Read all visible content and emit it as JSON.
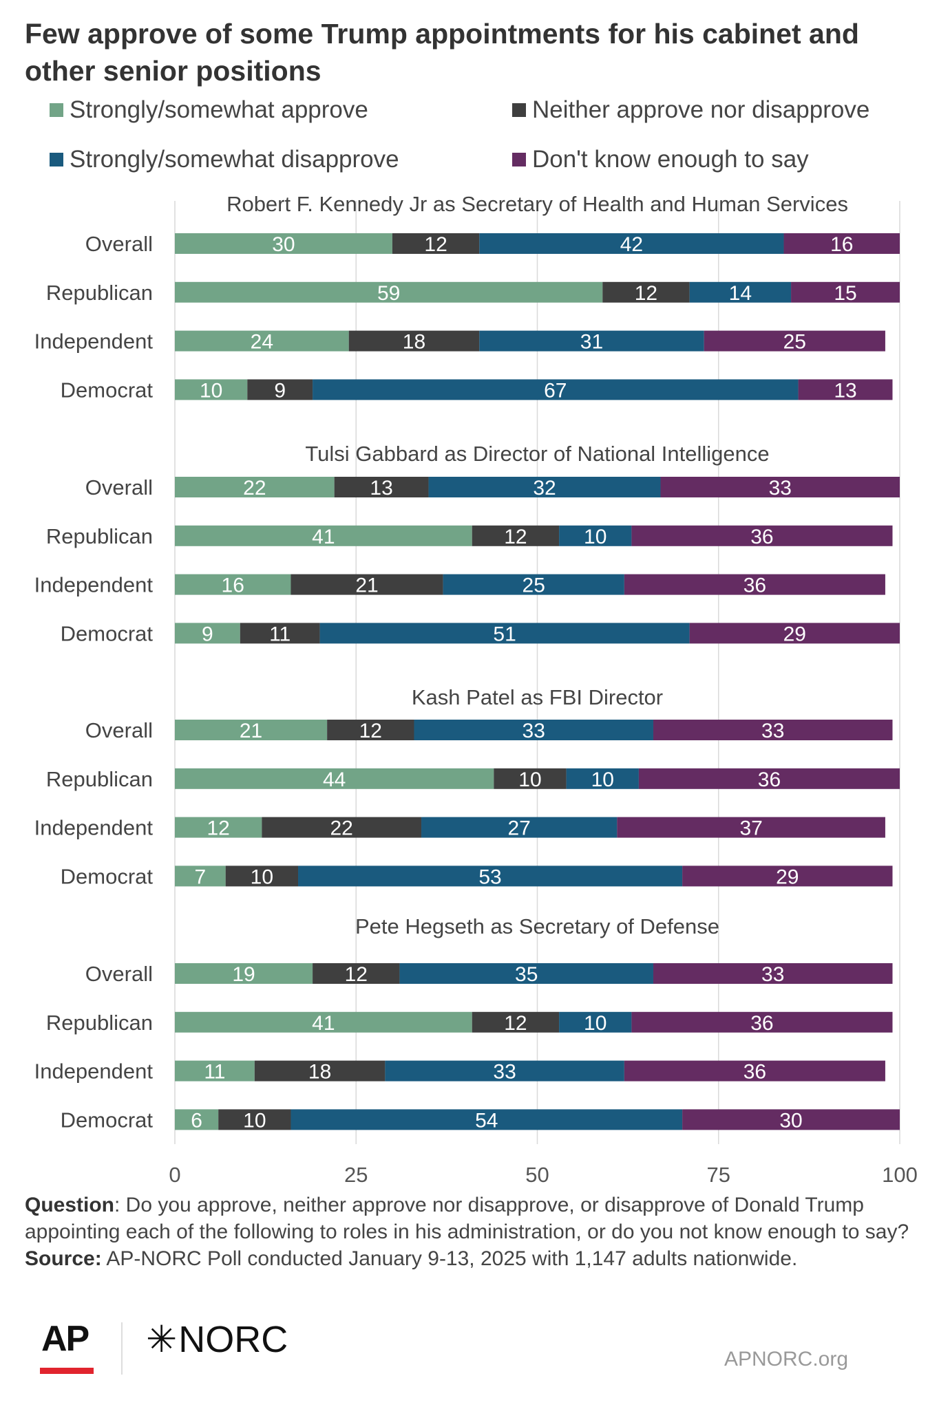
{
  "header": {
    "title": "Few approve of some Trump appointments for his cabinet and other senior positions"
  },
  "legend": [
    {
      "label": "Strongly/somewhat approve",
      "color": "#72a487"
    },
    {
      "label": "Neither approve nor disapprove",
      "color": "#3f3f3f"
    },
    {
      "label": "Strongly/somewhat disapprove",
      "color": "#1a5a7e"
    },
    {
      "label": "Don't know enough to say",
      "color": "#642c62"
    }
  ],
  "chart_data": {
    "type": "bar",
    "orientation": "horizontal",
    "stacked": true,
    "categories": [
      "Overall",
      "Republican",
      "Independent",
      "Democrat"
    ],
    "xlim": [
      0,
      100
    ],
    "xticks": [
      0,
      25,
      50,
      75,
      100
    ],
    "grid": true,
    "series_names": [
      "Strongly/somewhat approve",
      "Neither approve nor disapprove",
      "Strongly/somewhat disapprove",
      "Don't know enough to say"
    ],
    "colors": [
      "#72a487",
      "#3f3f3f",
      "#1a5a7e",
      "#642c62"
    ],
    "groups": [
      {
        "title": "Robert F. Kennedy Jr as Secretary of Health and Human Services",
        "rows": [
          {
            "label": "Overall",
            "values": [
              30,
              12,
              42,
              16
            ]
          },
          {
            "label": "Republican",
            "values": [
              59,
              12,
              14,
              15
            ]
          },
          {
            "label": "Independent",
            "values": [
              24,
              18,
              31,
              25
            ]
          },
          {
            "label": "Democrat",
            "values": [
              10,
              9,
              67,
              13
            ]
          }
        ]
      },
      {
        "title": "Tulsi Gabbard as Director of National Intelligence",
        "rows": [
          {
            "label": "Overall",
            "values": [
              22,
              13,
              32,
              33
            ]
          },
          {
            "label": "Republican",
            "values": [
              41,
              12,
              10,
              36
            ]
          },
          {
            "label": "Independent",
            "values": [
              16,
              21,
              25,
              36
            ]
          },
          {
            "label": "Democrat",
            "values": [
              9,
              11,
              51,
              29
            ]
          }
        ]
      },
      {
        "title": "Kash Patel as FBI Director",
        "rows": [
          {
            "label": "Overall",
            "values": [
              21,
              12,
              33,
              33
            ]
          },
          {
            "label": "Republican",
            "values": [
              44,
              10,
              10,
              36
            ]
          },
          {
            "label": "Independent",
            "values": [
              12,
              22,
              27,
              37
            ]
          },
          {
            "label": "Democrat",
            "values": [
              7,
              10,
              53,
              29
            ]
          }
        ]
      },
      {
        "title": "Pete Hegseth as Secretary of Defense",
        "rows": [
          {
            "label": "Overall",
            "values": [
              19,
              12,
              35,
              33
            ]
          },
          {
            "label": "Republican",
            "values": [
              41,
              12,
              10,
              36
            ]
          },
          {
            "label": "Independent",
            "values": [
              11,
              18,
              33,
              36
            ]
          },
          {
            "label": "Democrat",
            "values": [
              6,
              10,
              54,
              30
            ]
          }
        ]
      }
    ]
  },
  "footnote": {
    "question_label": "Question",
    "question_text": ": Do you approve, neither approve nor disapprove, or disapprove of Donald Trump appointing each of the following to roles in his administration, or do you not know enough to say?",
    "source_label": "Source:",
    "source_text": " AP-NORC Poll conducted January 9-13, 2025 with 1,147 adults nationwide."
  },
  "branding": {
    "ap": "AP",
    "norc_mark": "✳",
    "norc": "NORC",
    "site": "APNORC.org"
  }
}
